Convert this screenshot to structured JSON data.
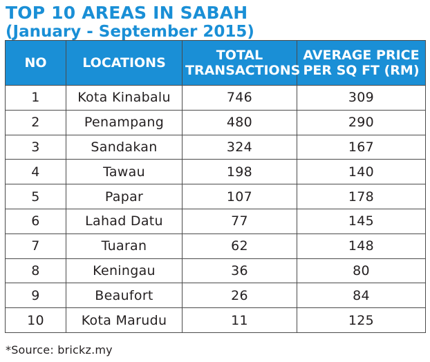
{
  "title": "TOP 10 AREAS IN SABAH",
  "subtitle": "(January - September 2015)",
  "chart_data": {
    "type": "table",
    "columns": [
      {
        "line1": "NO",
        "line2": ""
      },
      {
        "line1": "LOCATIONS",
        "line2": ""
      },
      {
        "line1": "TOTAL",
        "line2": "TRANSACTIONS"
      },
      {
        "line1": "AVERAGE PRICE",
        "line2": "PER SQ FT (RM)"
      }
    ],
    "rows": [
      {
        "no": "1",
        "location": "Kota Kinabalu",
        "total_transactions": "746",
        "avg_price": "309"
      },
      {
        "no": "2",
        "location": "Penampang",
        "total_transactions": "480",
        "avg_price": "290"
      },
      {
        "no": "3",
        "location": "Sandakan",
        "total_transactions": "324",
        "avg_price": "167"
      },
      {
        "no": "4",
        "location": "Tawau",
        "total_transactions": "198",
        "avg_price": "140"
      },
      {
        "no": "5",
        "location": "Papar",
        "total_transactions": "107",
        "avg_price": "178"
      },
      {
        "no": "6",
        "location": "Lahad Datu",
        "total_transactions": "77",
        "avg_price": "145"
      },
      {
        "no": "7",
        "location": "Tuaran",
        "total_transactions": "62",
        "avg_price": "148"
      },
      {
        "no": "8",
        "location": "Keningau",
        "total_transactions": "36",
        "avg_price": "80"
      },
      {
        "no": "9",
        "location": "Beaufort",
        "total_transactions": "26",
        "avg_price": "84"
      },
      {
        "no": "10",
        "location": "Kota Marudu",
        "total_transactions": "11",
        "avg_price": "125"
      }
    ]
  },
  "source": "*Source: brickz.my",
  "colors": {
    "accent": "#1a8fd6",
    "header_text": "#ffffff",
    "body_text": "#231f20",
    "border": "#4a4a4a"
  }
}
